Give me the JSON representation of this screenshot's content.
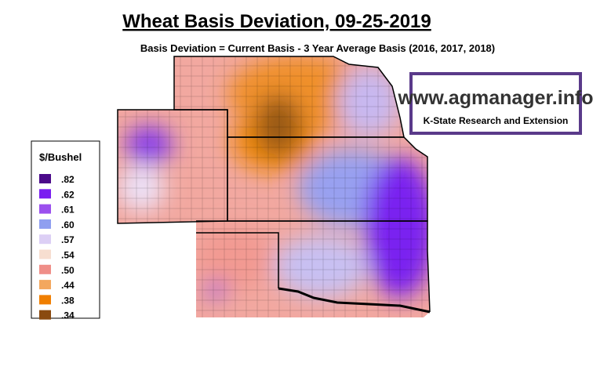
{
  "title": "Wheat Basis Deviation, 09-25-2019",
  "subtitle": "Basis Deviation = Current Basis - 3 Year Average Basis (2016, 2017, 2018)",
  "logo": {
    "url": "www.agmanager.info",
    "org": "K-State Research and Extension"
  },
  "legend": {
    "title": "$/Bushel",
    "items": [
      {
        "label": ".82",
        "color": "#4b0a8a"
      },
      {
        "label": ".62",
        "color": "#7a1ff0"
      },
      {
        "label": ".61",
        "color": "#9b50ee"
      },
      {
        "label": ".60",
        "color": "#8f9ff0"
      },
      {
        "label": ".57",
        "color": "#dccff5"
      },
      {
        "label": ".54",
        "color": "#f7ded0"
      },
      {
        "label": ".50",
        "color": "#ef8e88"
      },
      {
        "label": ".44",
        "color": "#f3a75e"
      },
      {
        "label": ".38",
        "color": "#f07f00"
      },
      {
        "label": ".34",
        "color": "#8a4a10"
      }
    ]
  }
}
